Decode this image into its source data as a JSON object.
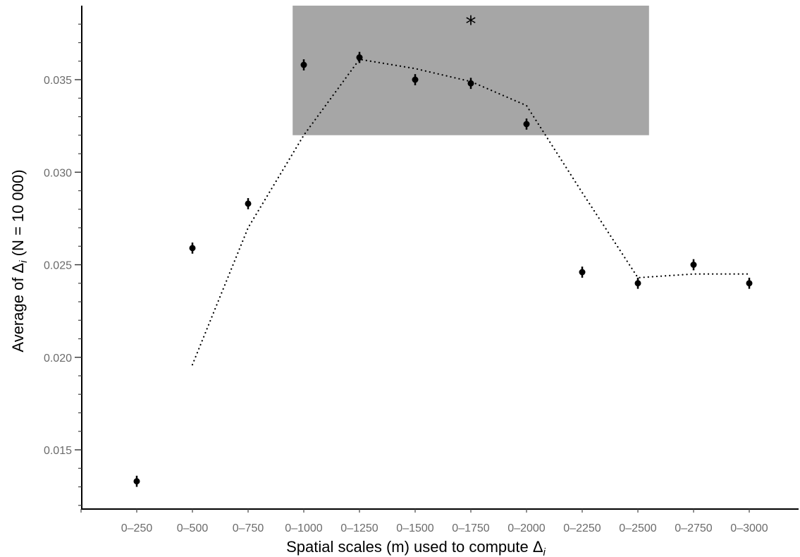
{
  "chart_data": {
    "type": "scatter",
    "xlabel_main": "Spatial scales (m) used to compute Δ",
    "xlabel_sub": "i",
    "ylabel_pre": "Average of Δ",
    "ylabel_sub": "i",
    "ylabel_post": " (N = 10 000)",
    "categories": [
      "0–250",
      "0–500",
      "0–750",
      "0–1000",
      "0–1250",
      "0–1500",
      "0–1750",
      "0–2000",
      "0–2250",
      "0–2500",
      "0–2750",
      "0–3000"
    ],
    "values": [
      0.0133,
      0.0259,
      0.0283,
      0.0358,
      0.0362,
      0.035,
      0.0348,
      0.0326,
      0.0246,
      0.024,
      0.025,
      0.024
    ],
    "error": [
      0.0003,
      0.0003,
      0.0003,
      0.0003,
      0.0003,
      0.0003,
      0.0003,
      0.0003,
      0.0003,
      0.0003,
      0.0003,
      0.0003
    ],
    "trend_line": {
      "style": "dotted",
      "points": [
        [
          2,
          0.0196
        ],
        [
          3,
          0.027
        ],
        [
          4,
          0.032
        ],
        [
          5,
          0.0361
        ],
        [
          6,
          0.0356
        ],
        [
          7,
          0.0349
        ],
        [
          8,
          0.0336
        ],
        [
          9,
          0.0289
        ],
        [
          10,
          0.0243
        ],
        [
          11,
          0.0245
        ],
        [
          12,
          0.0245
        ]
      ]
    },
    "highlight_region": {
      "x_range": [
        3.8,
        10.2
      ],
      "y_range": [
        0.032,
        0.039
      ],
      "color": "#a6a6a6",
      "marker": "*"
    },
    "ylim": [
      0.0118,
      0.039
    ],
    "yticks_major": [
      0.015,
      0.02,
      0.025,
      0.03,
      0.035
    ],
    "ytick_labels": [
      "0.015",
      "0.020",
      "0.025",
      "0.030",
      "0.035"
    ],
    "grid": false,
    "legend": "none"
  }
}
